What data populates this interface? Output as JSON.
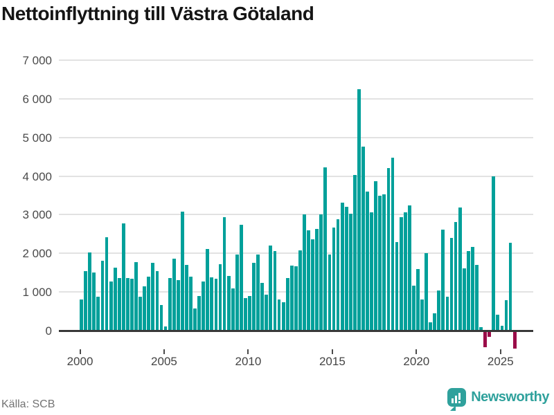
{
  "title": "Nettoinflyttning till Västra Götaland",
  "footer": {
    "source": "Källa: SCB",
    "brand": "Newsworthy"
  },
  "colors": {
    "bar_positive": "#00a09a",
    "bar_negative": "#9b0c49",
    "grid": "#e2e2e2",
    "zero_line": "#383838",
    "title_text": "#151515",
    "axis_text": "#4a4a4a",
    "source_text": "#737373",
    "brand_teal": "#2fa19c"
  },
  "chart_data": {
    "type": "bar",
    "title": "Nettoinflyttning till Västra Götaland",
    "x_period": "quarterly",
    "start": "2000 Q1",
    "end": "2025 Q4",
    "x_tick_labels": [
      "2000",
      "2005",
      "2010",
      "2015",
      "2020",
      "2025"
    ],
    "y_ticks": [
      0,
      1000,
      2000,
      3000,
      4000,
      5000,
      6000,
      7000
    ],
    "y_tick_labels": [
      "0",
      "1 000",
      "2 000",
      "3 000",
      "4 000",
      "5 000",
      "6 000",
      "7 000"
    ],
    "ylim": [
      -600,
      7000
    ],
    "grid": "horizontal",
    "legend": "none",
    "values": [
      800,
      1540,
      2020,
      1500,
      870,
      1810,
      2420,
      1270,
      1630,
      1360,
      2780,
      1360,
      1340,
      1780,
      880,
      1150,
      1400,
      1750,
      1540,
      660,
      100,
      1360,
      1870,
      1310,
      3080,
      1700,
      1390,
      570,
      890,
      1270,
      2120,
      1370,
      1350,
      1710,
      2930,
      1420,
      1100,
      1970,
      2740,
      840,
      890,
      1750,
      1970,
      1240,
      930,
      2210,
      2060,
      810,
      730,
      1360,
      1690,
      1660,
      2080,
      3000,
      2590,
      2370,
      2640,
      3000,
      4220,
      1970,
      2670,
      2880,
      3310,
      3210,
      3030,
      4030,
      6250,
      4760,
      3600,
      3070,
      3860,
      3490,
      3520,
      4200,
      4480,
      2300,
      2930,
      3070,
      3240,
      1160,
      1590,
      810,
      2000,
      210,
      440,
      1030,
      2610,
      880,
      2400,
      2810,
      3180,
      1620,
      2060,
      2170,
      1700,
      90,
      -430,
      -160,
      4000,
      410,
      120,
      790,
      2270,
      -470
    ]
  }
}
